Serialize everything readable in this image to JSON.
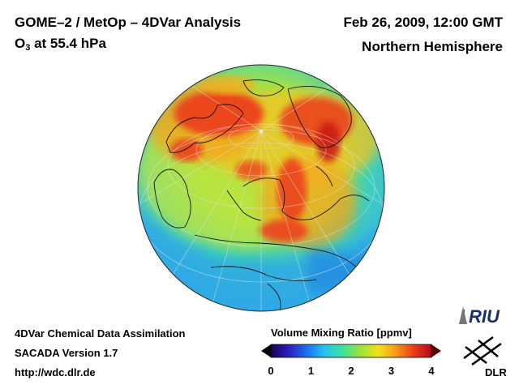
{
  "header": {
    "title": "GOME–2 / MetOp – 4DVar Analysis",
    "species_prefix": "O",
    "species_sub": "3",
    "species_suffix": " at 55.4 hPa",
    "datetime": "Feb 26, 2009, 12:00 GMT",
    "region": "Northern Hemisphere"
  },
  "footer": {
    "line1": "4DVar Chemical Data Assimilation",
    "line2": "SACADA Version 1.7",
    "line3": "http://wdc.dlr.de"
  },
  "colorbar": {
    "title": "Volume Mixing Ratio [ppmv]",
    "ticks": [
      "0",
      "1",
      "2",
      "3",
      "4"
    ],
    "range": [
      0,
      4
    ],
    "colors": [
      "#1a0050",
      "#2a1fbf",
      "#1e6ef0",
      "#22c3ee",
      "#3fe0a0",
      "#9be23a",
      "#f2e21a",
      "#f59a18",
      "#ee3a1a",
      "#b00c1a"
    ]
  },
  "logos": {
    "riu": "RIU",
    "dlr": "DLR"
  },
  "colors": {
    "ocean_low": "#3aaee8",
    "mid": "#8fe04a",
    "high": "#ee3a1a"
  }
}
